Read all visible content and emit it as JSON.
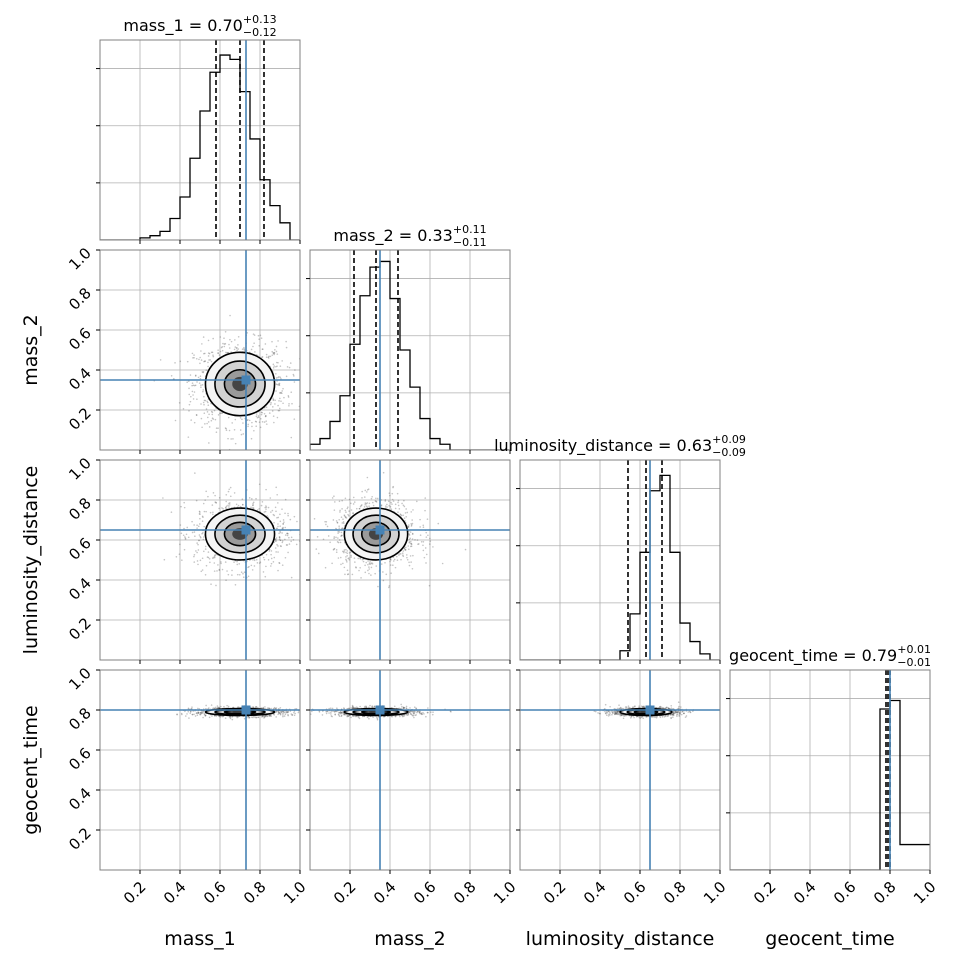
{
  "chart_data": {
    "type": "corner",
    "parameters": [
      "mass_1",
      "mass_2",
      "luminosity_distance",
      "geocent_time"
    ],
    "axis_labels": [
      "mass_1",
      "mass_2",
      "luminosity_distance",
      "geocent_time"
    ],
    "tick_labels": [
      "0.2",
      "0.4",
      "0.6",
      "0.8",
      "1.0"
    ],
    "tick_values": [
      0.2,
      0.4,
      0.6,
      0.8,
      1.0
    ],
    "xlim": [
      0,
      1
    ],
    "ylim": [
      0,
      1
    ],
    "grid": true,
    "truth_color": "#4682b4",
    "contour_color": "#000000",
    "truths": [
      0.73,
      0.35,
      0.65,
      0.8
    ],
    "titles": [
      {
        "param": "mass_1",
        "median": "0.70",
        "plus": "+0.13",
        "minus": "−0.12"
      },
      {
        "param": "mass_2",
        "median": "0.33",
        "plus": "+0.11",
        "minus": "−0.11"
      },
      {
        "param": "luminosity_distance",
        "median": "0.63",
        "plus": "+0.09",
        "minus": "−0.09"
      },
      {
        "param": "geocent_time",
        "median": "0.79",
        "plus": "+0.01",
        "minus": "−0.01"
      }
    ],
    "quantiles": [
      [
        0.58,
        0.7,
        0.82
      ],
      [
        0.22,
        0.33,
        0.44
      ],
      [
        0.54,
        0.63,
        0.71
      ],
      [
        0.78,
        0.79,
        0.8
      ]
    ],
    "histograms": [
      {
        "bin_edges": [
          0.0,
          0.05,
          0.1,
          0.15,
          0.2,
          0.25,
          0.3,
          0.35,
          0.4,
          0.45,
          0.5,
          0.55,
          0.6,
          0.65,
          0.7,
          0.75,
          0.8,
          0.85,
          0.9,
          0.95,
          1.0
        ],
        "counts": [
          0,
          0,
          0,
          0,
          1,
          2,
          4,
          10,
          20,
          38,
          60,
          78,
          86,
          84,
          69,
          47,
          28,
          16,
          8,
          0
        ],
        "ymax": 93
      },
      {
        "bin_edges": [
          0.0,
          0.05,
          0.1,
          0.15,
          0.2,
          0.25,
          0.3,
          0.35,
          0.4,
          0.45,
          0.5,
          0.55,
          0.6,
          0.65,
          0.7,
          0.75,
          0.8,
          0.85,
          0.9,
          0.95,
          1.0
        ],
        "counts": [
          2,
          4,
          10,
          19,
          37,
          54,
          64,
          66,
          53,
          35,
          22,
          11,
          4,
          2,
          0,
          0,
          0,
          0,
          0,
          0
        ],
        "ymax": 70
      },
      {
        "bin_edges": [
          0.0,
          0.05,
          0.1,
          0.15,
          0.2,
          0.25,
          0.3,
          0.35,
          0.4,
          0.45,
          0.5,
          0.55,
          0.6,
          0.65,
          0.7,
          0.75,
          0.8,
          0.85,
          0.9,
          0.95,
          1.0
        ],
        "counts": [
          0,
          0,
          0,
          0,
          0,
          0,
          0,
          0,
          0,
          0,
          3,
          15,
          35,
          55,
          60,
          35,
          12,
          6,
          2,
          0
        ],
        "ymax": 65
      },
      {
        "bin_edges": [
          0.0,
          0.05,
          0.1,
          0.15,
          0.2,
          0.25,
          0.3,
          0.35,
          0.4,
          0.45,
          0.5,
          0.55,
          0.6,
          0.65,
          0.7,
          0.75,
          0.8,
          0.85,
          1.0
        ],
        "counts": [
          0,
          0,
          0,
          0,
          0,
          0,
          0,
          0,
          0,
          0,
          0,
          0,
          0,
          0,
          0,
          95,
          100,
          15
        ],
        "ymax": 118
      }
    ],
    "pairs": [
      {
        "x": "mass_1",
        "y": "mass_2",
        "cx": 0.7,
        "cy": 0.33,
        "sx": 0.12,
        "sy": 0.11
      },
      {
        "x": "mass_1",
        "y": "luminosity_distance",
        "cx": 0.7,
        "cy": 0.63,
        "sx": 0.12,
        "sy": 0.09
      },
      {
        "x": "mass_2",
        "y": "luminosity_distance",
        "cx": 0.33,
        "cy": 0.63,
        "sx": 0.11,
        "sy": 0.09
      },
      {
        "x": "mass_1",
        "y": "geocent_time",
        "cx": 0.7,
        "cy": 0.79,
        "sx": 0.12,
        "sy": 0.012
      },
      {
        "x": "mass_2",
        "y": "geocent_time",
        "cx": 0.33,
        "cy": 0.79,
        "sx": 0.11,
        "sy": 0.012
      },
      {
        "x": "luminosity_distance",
        "y": "geocent_time",
        "cx": 0.63,
        "cy": 0.79,
        "sx": 0.09,
        "sy": 0.012
      }
    ]
  }
}
